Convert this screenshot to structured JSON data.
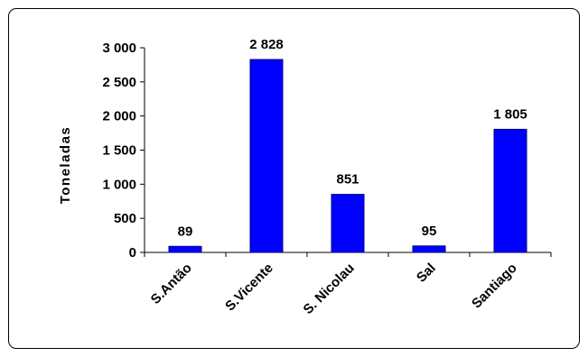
{
  "chart_data": {
    "type": "bar",
    "title": "",
    "xlabel": "",
    "ylabel": "Toneladas",
    "categories": [
      "S.Antão",
      "S.Vicente",
      "S. Nicolau",
      "Sal",
      "Santiago"
    ],
    "values": [
      89,
      2828,
      851,
      95,
      1805
    ],
    "data_labels": [
      "89",
      "2 828",
      "851",
      "95",
      "1 805"
    ],
    "ylim": [
      0,
      3000
    ],
    "yticks": [
      0,
      500,
      1000,
      1500,
      2000,
      2500,
      3000
    ],
    "ytick_labels": [
      "0",
      "500",
      "1 000",
      "1 500",
      "2 000",
      "2 500",
      "3 000"
    ],
    "grid": false,
    "legend": "none",
    "colors": {
      "bar": "#0000FF",
      "bar_edge": "#000080",
      "axis": "#000000"
    }
  }
}
